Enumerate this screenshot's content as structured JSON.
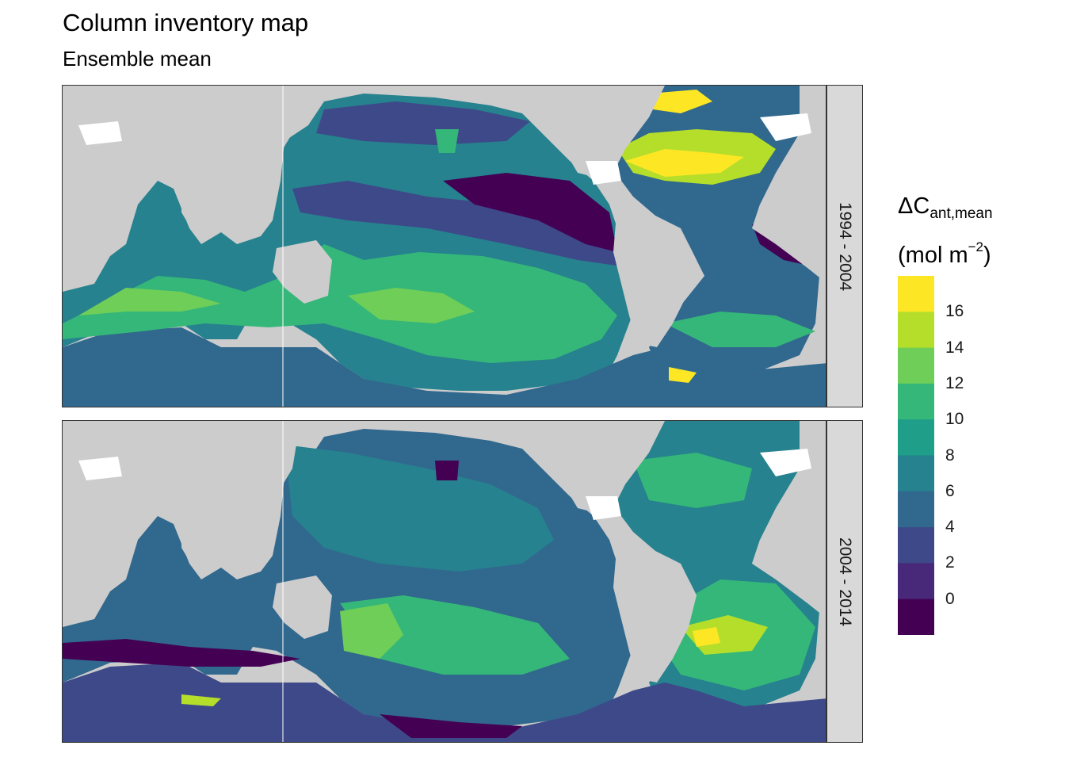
{
  "title": "Column inventory map",
  "subtitle": "Ensemble mean",
  "panels": [
    {
      "label": "1994 - 2004"
    },
    {
      "label": "2004 - 2014"
    }
  ],
  "legend": {
    "symbol": "ΔC",
    "subscript": "ant,mean",
    "units_open": "(mol m",
    "units_exp": "−2",
    "units_close": ")",
    "ticks": [
      "16",
      "14",
      "12",
      "10",
      "8",
      "6",
      "4",
      "2",
      "0"
    ],
    "colors": [
      "#fde725",
      "#b5de2b",
      "#6ece58",
      "#35b779",
      "#1f9e89",
      "#26828e",
      "#31688e",
      "#3e4989",
      "#482878",
      "#440154"
    ]
  },
  "map_colors": {
    "land": "#cccccc",
    "ice": "#ffffff"
  }
}
